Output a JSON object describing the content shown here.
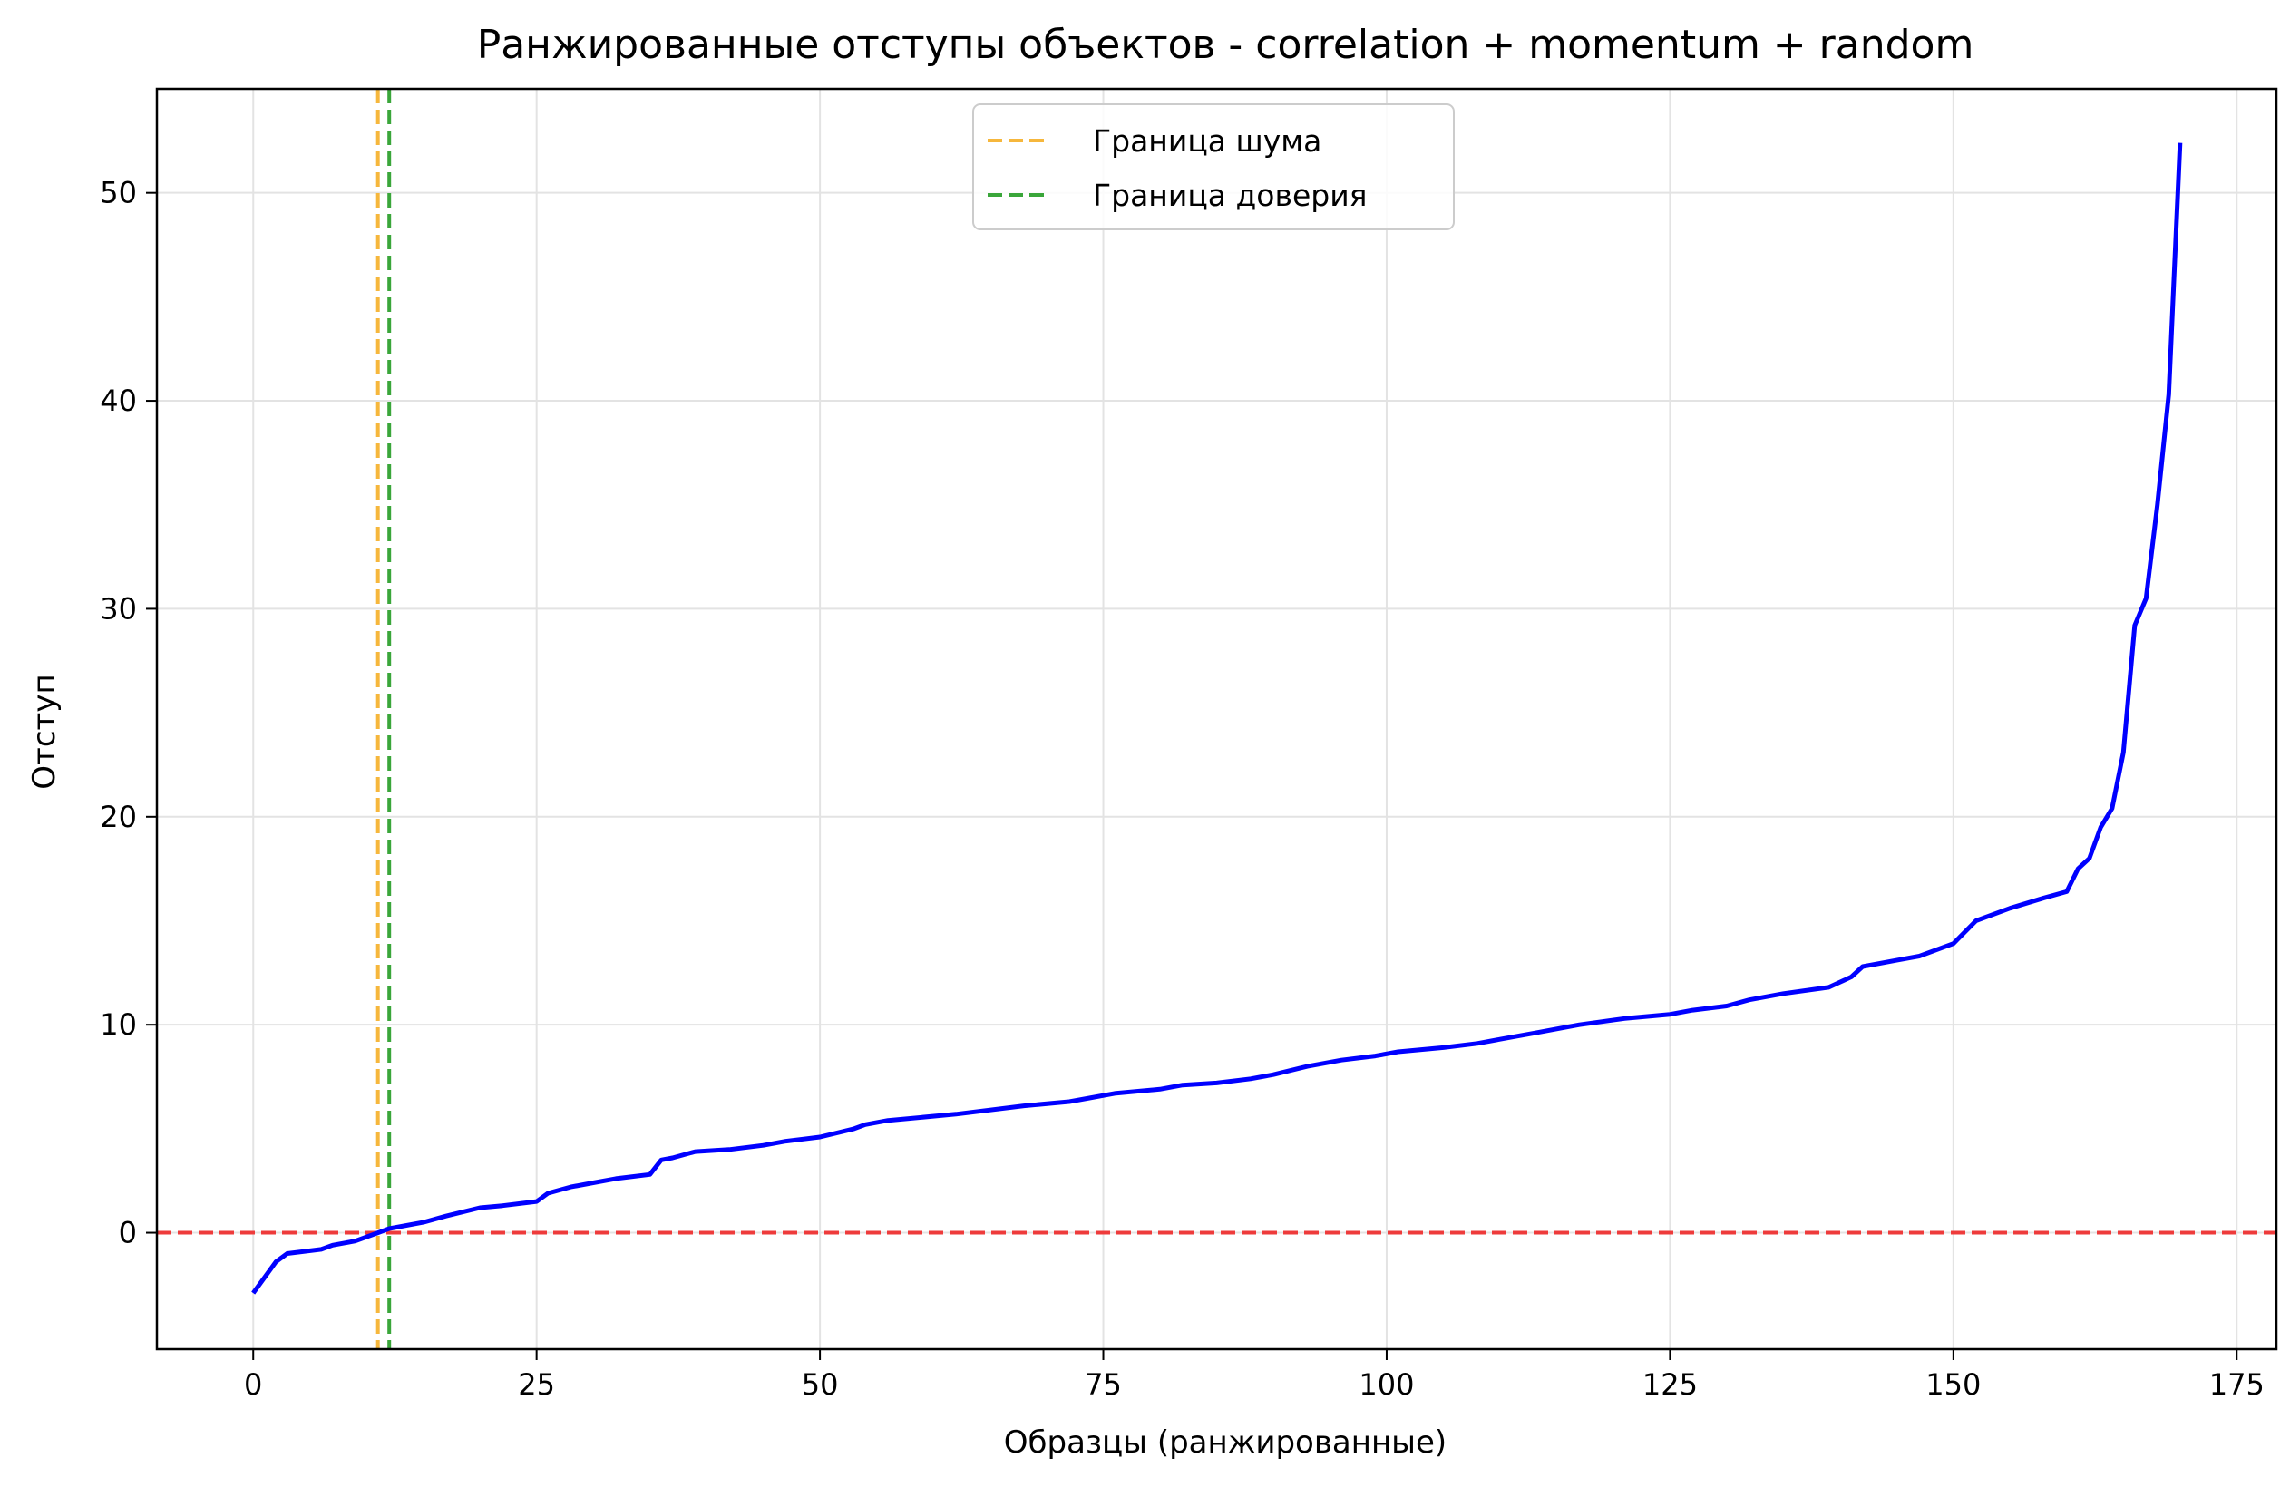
{
  "chart_data": {
    "type": "line",
    "title": "Ранжированные отступы объектов - correlation + momentum + random",
    "xlabel": "Образцы (ранжированные)",
    "ylabel": "Отступ",
    "xlim": [
      -8.5,
      178.5
    ],
    "ylim": [
      -5.6,
      55
    ],
    "xticks": [
      0,
      25,
      50,
      75,
      100,
      125,
      150,
      175
    ],
    "yticks": [
      0,
      10,
      20,
      30,
      40,
      50
    ],
    "grid": true,
    "legend": {
      "placement": "top-center",
      "entries": [
        {
          "label": "Граница шума",
          "color": "#f6b73c",
          "style": "dashed"
        },
        {
          "label": "Граница доверия",
          "color": "#3aa63a",
          "style": "dashed"
        }
      ]
    },
    "hlines": [
      {
        "y": 0,
        "color": "#ee3b3b",
        "style": "dashed"
      }
    ],
    "vlines": [
      {
        "x": 11,
        "color": "#f6b73c",
        "style": "dashed"
      },
      {
        "x": 12,
        "color": "#3aa63a",
        "style": "dashed"
      }
    ],
    "series": [
      {
        "color": "#0000ff",
        "x": [
          0,
          2,
          3,
          6,
          7,
          9,
          11,
          12,
          15,
          17,
          20,
          22,
          25,
          26,
          28,
          30,
          32,
          35,
          36,
          37,
          39,
          42,
          45,
          47,
          50,
          53,
          54,
          56,
          62,
          68,
          72,
          74,
          76,
          80,
          82,
          85,
          88,
          90,
          93,
          96,
          99,
          101,
          105,
          108,
          110,
          113,
          117,
          121,
          125,
          127,
          130,
          132,
          135,
          139,
          141,
          142,
          145,
          147,
          150,
          152,
          155,
          158,
          160,
          161,
          162,
          163,
          164,
          165,
          166,
          167,
          168,
          169,
          170
        ],
        "y": [
          -2.9,
          -1.4,
          -1.0,
          -0.8,
          -0.6,
          -0.4,
          0.0,
          0.2,
          0.5,
          0.8,
          1.2,
          1.3,
          1.5,
          1.9,
          2.2,
          2.4,
          2.6,
          2.8,
          3.5,
          3.6,
          3.9,
          4.0,
          4.2,
          4.4,
          4.6,
          5.0,
          5.2,
          5.4,
          5.7,
          6.1,
          6.3,
          6.5,
          6.7,
          6.9,
          7.1,
          7.2,
          7.4,
          7.6,
          8.0,
          8.3,
          8.5,
          8.7,
          8.9,
          9.1,
          9.3,
          9.6,
          10.0,
          10.3,
          10.5,
          10.7,
          10.9,
          11.2,
          11.5,
          11.8,
          12.3,
          12.8,
          13.1,
          13.3,
          13.9,
          15.0,
          15.6,
          16.1,
          16.4,
          17.5,
          18.0,
          19.5,
          20.4,
          23.1,
          29.2,
          30.5,
          35.0,
          40.3,
          52.4
        ]
      }
    ]
  }
}
